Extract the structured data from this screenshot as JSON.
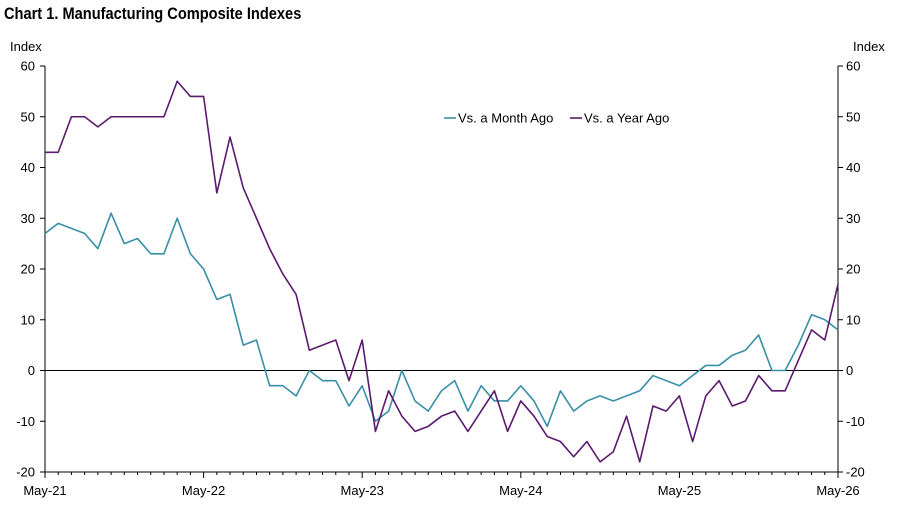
{
  "chart_data": {
    "type": "line",
    "title": "Chart 1. Manufacturing Composite Indexes",
    "ylabel_left": "Index",
    "ylabel_right": "Index",
    "ylim": [
      -20,
      60
    ],
    "yticks": [
      -20,
      -10,
      0,
      10,
      20,
      30,
      40,
      50,
      60
    ],
    "x_start": "May-21",
    "x_end": "May-26",
    "xtick_labels": [
      "May-21",
      "May-22",
      "May-23",
      "May-24",
      "May-25",
      "May-26"
    ],
    "grid": false,
    "legend_position": "top-center",
    "series": [
      {
        "name": "Vs. a Month Ago",
        "color": "#3a8fa8",
        "values": [
          27,
          29,
          28,
          27,
          24,
          31,
          25,
          26,
          23,
          23,
          30,
          23,
          20,
          14,
          15,
          5,
          6,
          -3,
          -3,
          -5,
          0,
          -2,
          -2,
          -7,
          -3,
          -10,
          -8,
          0,
          -6,
          -8,
          -4,
          -2,
          -8,
          -3,
          -6,
          -6,
          -3,
          -6,
          -11,
          -4,
          -8,
          -6,
          -5,
          -6,
          -5,
          -4,
          -1,
          -2,
          -3,
          -1,
          1,
          1,
          3,
          4,
          7,
          0,
          0,
          5,
          11,
          10,
          8
        ]
      },
      {
        "name": "Vs. a Year Ago",
        "color": "#5c1a6e",
        "values": [
          43,
          43,
          50,
          50,
          48,
          50,
          50,
          50,
          50,
          50,
          57,
          54,
          54,
          35,
          46,
          36,
          30,
          24,
          19,
          15,
          4,
          5,
          6,
          -2,
          6,
          -12,
          -4,
          -9,
          -12,
          -11,
          -9,
          -8,
          -12,
          -8,
          -4,
          -12,
          -6,
          -9,
          -13,
          -14,
          -17,
          -14,
          -18,
          -16,
          -9,
          -18,
          -7,
          -8,
          -5,
          -14,
          -5,
          -2,
          -7,
          -6,
          -1,
          -4,
          -4,
          2,
          8,
          6,
          17
        ]
      }
    ]
  }
}
